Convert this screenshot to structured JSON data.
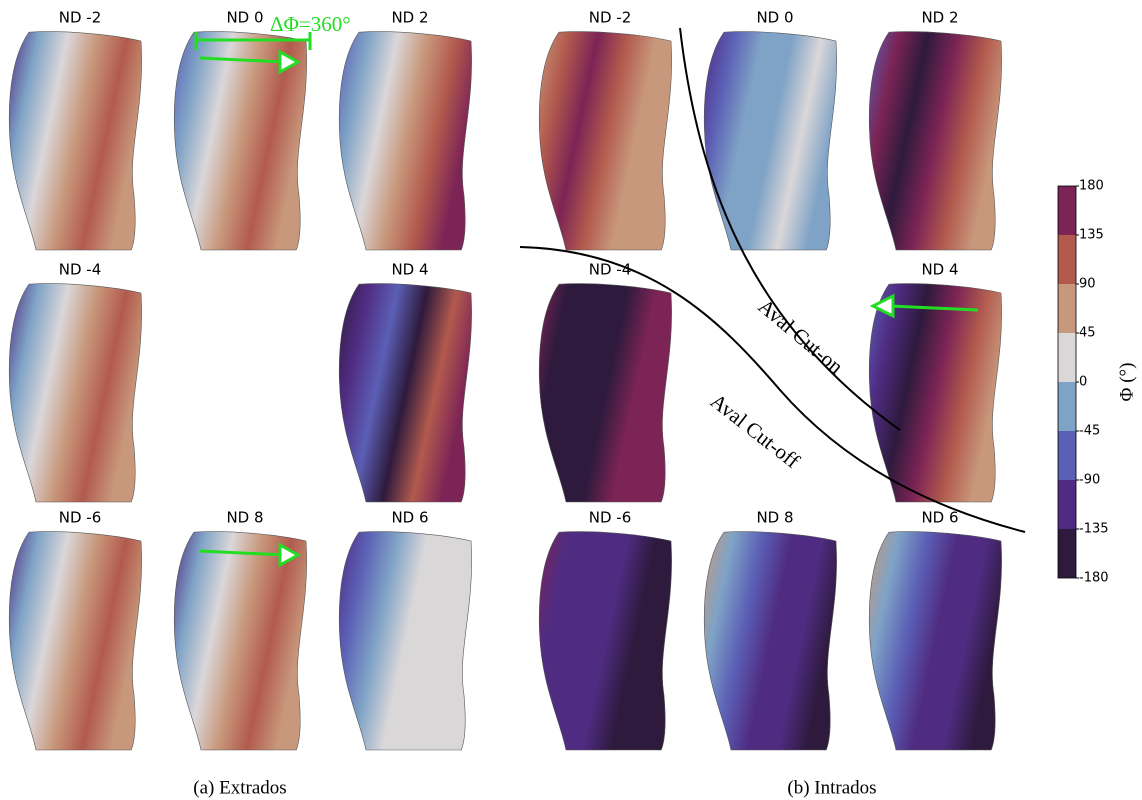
{
  "extrados": {
    "caption": "(a) Extrados",
    "panels": [
      {
        "title": "ND -2"
      },
      {
        "title": "ND 0"
      },
      {
        "title": "ND 2"
      },
      {
        "title": "ND -4"
      },
      {
        "title": "ND 4"
      },
      {
        "title": "ND -6"
      },
      {
        "title": "ND 8"
      },
      {
        "title": "ND 6"
      }
    ]
  },
  "intrados": {
    "caption": "(b) Intrados",
    "panels": [
      {
        "title": "ND -2"
      },
      {
        "title": "ND 0"
      },
      {
        "title": "ND 2"
      },
      {
        "title": "ND -4"
      },
      {
        "title": "ND 4"
      },
      {
        "title": "ND -6"
      },
      {
        "title": "ND 8"
      },
      {
        "title": "ND 6"
      }
    ]
  },
  "annotations": {
    "delta_phi": "ΔΦ=360°",
    "cut_on": "Aval Cut-on",
    "cut_off": "Aval Cut-off"
  },
  "colorbar": {
    "label": "Φ (°)",
    "lim": [
      -180,
      180
    ],
    "ticks": [
      -180,
      -135,
      -90,
      -45,
      0,
      45,
      90,
      135,
      180
    ],
    "colors": [
      "#2e1a3d",
      "#4f2c82",
      "#5b5fb5",
      "#7fa3c6",
      "#dad7d9",
      "#c8987c",
      "#b25a4d",
      "#7c2455"
    ]
  }
}
